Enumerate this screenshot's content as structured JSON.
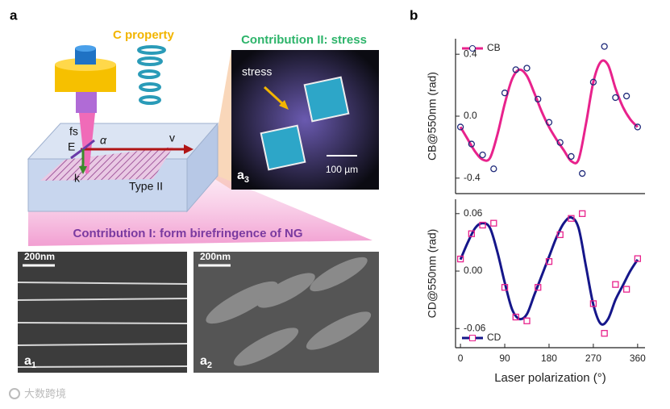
{
  "panel_a": {
    "label": "a",
    "c_property": "C property",
    "fs": "fs",
    "e": "E",
    "alpha": "α",
    "v": "v",
    "k": "k",
    "type": "Type II",
    "contribution_2": "Contribution II: stress",
    "stress": "stress",
    "scale_stress": "100 µm",
    "inset_3": {
      "letter": "a",
      "sub": "3"
    },
    "contribution_1": "Contribution I: form birefringence of NG",
    "inset_1": {
      "scale": "200nm",
      "letter": "a",
      "sub": "1"
    },
    "inset_2": {
      "scale": "200nm",
      "letter": "a",
      "sub": "2"
    },
    "watermark": "大数跨境"
  },
  "panel_b": {
    "label": "b"
  },
  "chart_data": [
    {
      "type": "line",
      "ylabel": "CB@550nm (rad)",
      "xlim": [
        -10,
        375
      ],
      "ylim": [
        -0.5,
        0.5
      ],
      "yticks": [
        {
          "value": 0.4,
          "label": "0.4"
        },
        {
          "value": 0,
          "label": "0.0"
        },
        {
          "value": -0.4,
          "label": "-0.4"
        }
      ],
      "x": [
        0,
        22.5,
        45,
        67.5,
        90,
        112.5,
        135,
        157.5,
        180,
        202.5,
        225,
        247.5,
        270,
        292.5,
        315,
        337.5,
        360
      ],
      "series": [
        {
          "name": "CB",
          "color": "#e8228c",
          "marker_color": "#1f2a7a",
          "marker": "circle",
          "values": [
            -0.07,
            -0.18,
            -0.25,
            -0.34,
            0.15,
            0.3,
            0.31,
            0.11,
            -0.04,
            -0.17,
            -0.26,
            -0.37,
            0.22,
            0.45,
            0.12,
            0.13,
            -0.07
          ],
          "fit_x": [
            0,
            15,
            30,
            45,
            60,
            75,
            90,
            105,
            120,
            135,
            150,
            165,
            180,
            195,
            210,
            225,
            240,
            255,
            270,
            285,
            300,
            315,
            330,
            345,
            360
          ],
          "fit_values": [
            -0.07,
            -0.15,
            -0.23,
            -0.28,
            -0.27,
            -0.12,
            0.08,
            0.24,
            0.3,
            0.26,
            0.15,
            0.03,
            -0.07,
            -0.15,
            -0.22,
            -0.29,
            -0.28,
            -0.05,
            0.22,
            0.35,
            0.33,
            0.18,
            0.06,
            -0.02,
            -0.07
          ]
        }
      ],
      "legend": "upper-left"
    },
    {
      "type": "line",
      "ylabel": "CD@550nm (rad)",
      "xlabel": "Laser polarization (°)",
      "xlim": [
        -10,
        375
      ],
      "ylim": [
        -0.08,
        0.075
      ],
      "xticks": [
        0,
        90,
        180,
        270,
        360
      ],
      "yticks": [
        {
          "value": 0.06,
          "label": "0.06"
        },
        {
          "value": 0,
          "label": "0.00"
        },
        {
          "value": -0.06,
          "label": "-0.06"
        }
      ],
      "x": [
        0,
        22.5,
        45,
        67.5,
        90,
        112.5,
        135,
        157.5,
        180,
        202.5,
        225,
        247.5,
        270,
        292.5,
        315,
        337.5,
        360
      ],
      "series": [
        {
          "name": "CD",
          "color": "#15168a",
          "marker_color": "#e8228c",
          "marker": "square",
          "values": [
            0.0126,
            0.039,
            0.048,
            0.05,
            -0.017,
            -0.048,
            -0.052,
            -0.017,
            0.01,
            0.038,
            0.055,
            0.06,
            -0.034,
            -0.065,
            -0.014,
            -0.019,
            0.013
          ],
          "fit_x": [
            0,
            15,
            30,
            45,
            60,
            75,
            90,
            105,
            120,
            135,
            150,
            165,
            180,
            195,
            210,
            225,
            240,
            255,
            270,
            285,
            300,
            315,
            330,
            345,
            360
          ],
          "fit_values": [
            0.012,
            0.03,
            0.045,
            0.05,
            0.045,
            0.02,
            -0.012,
            -0.04,
            -0.05,
            -0.045,
            -0.025,
            -0.005,
            0.015,
            0.035,
            0.05,
            0.056,
            0.045,
            0.005,
            -0.035,
            -0.055,
            -0.05,
            -0.03,
            -0.015,
            0,
            0.012
          ]
        }
      ],
      "legend": "lower-left"
    }
  ]
}
